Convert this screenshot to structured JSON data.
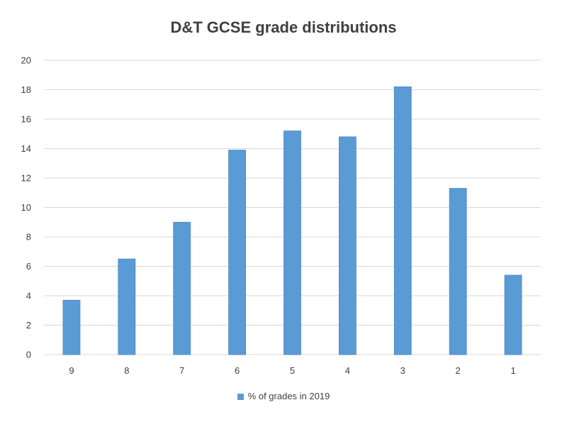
{
  "chart_data": {
    "type": "bar",
    "title": "D&T GCSE grade distributions",
    "categories": [
      "9",
      "8",
      "7",
      "6",
      "5",
      "4",
      "3",
      "2",
      "1"
    ],
    "series": [
      {
        "name": "% of grades in 2019",
        "color": "#5b9bd5",
        "values": [
          3.7,
          6.5,
          9.0,
          13.9,
          15.2,
          14.8,
          18.2,
          11.3,
          5.4
        ]
      }
    ],
    "ylim": [
      0,
      20
    ],
    "yticks": [
      0,
      2,
      4,
      6,
      8,
      10,
      12,
      14,
      16,
      18,
      20
    ],
    "grid": true,
    "legend_position": "bottom",
    "colors": {
      "gridline": "#d9d9d9",
      "text": "#404040"
    }
  }
}
